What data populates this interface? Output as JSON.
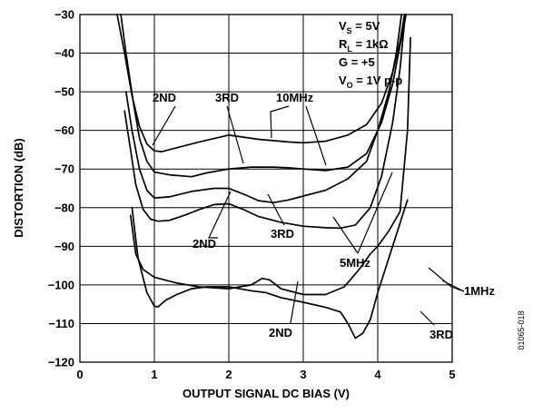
{
  "chart_data": {
    "type": "line",
    "title": "",
    "xlabel": "OUTPUT SIGNAL DC BIAS (V)",
    "ylabel": "DISTORTION (dB)",
    "xlim": [
      0,
      5
    ],
    "ylim": [
      -120,
      -30
    ],
    "x_ticks": [
      "0",
      "1",
      "2",
      "3",
      "4",
      "5"
    ],
    "y_ticks": [
      "-30",
      "-40",
      "-50",
      "-60",
      "-70",
      "-80",
      "-90",
      "-100",
      "-110",
      "-120"
    ],
    "grid": true,
    "conditions": [
      "V",
      "S",
      " = 5V",
      "R",
      "L",
      " = 1kΩ",
      "G = +5",
      "V",
      "O",
      " = 1V p-p"
    ],
    "figure_code": "01065-018",
    "series": [
      {
        "group": "10MHz",
        "harmonic": "2ND",
        "x": [
          0.5,
          0.6,
          0.7,
          0.8,
          0.9,
          1.0,
          1.1,
          1.3,
          1.6,
          2.0,
          2.4,
          2.8,
          3.0,
          3.3,
          3.6,
          3.85,
          4.05,
          4.2,
          4.3,
          4.36
        ],
        "y": [
          -30,
          -40,
          -51,
          -59,
          -63.5,
          -65.3,
          -65.5,
          -64.5,
          -63,
          -61.2,
          -62.3,
          -63,
          -63.2,
          -62.8,
          -61.2,
          -58.5,
          -53,
          -45,
          -37,
          -30
        ]
      },
      {
        "group": "10MHz",
        "harmonic": "3RD",
        "x": [
          0.55,
          0.62,
          0.72,
          0.8,
          0.9,
          1.0,
          1.2,
          1.5,
          1.7,
          2.0,
          2.3,
          2.6,
          2.8,
          3.0,
          3.3,
          3.6,
          3.85,
          4.05,
          4.2,
          4.3,
          4.38
        ],
        "y": [
          -30,
          -40,
          -53,
          -62,
          -68,
          -70.8,
          -71.5,
          -72,
          -71,
          -70,
          -69.5,
          -69.5,
          -69.7,
          -70,
          -70.4,
          -69.5,
          -66,
          -58,
          -48,
          -38,
          -30
        ]
      },
      {
        "group": "5MHz",
        "harmonic": "2ND",
        "x": [
          0.62,
          0.7,
          0.8,
          0.9,
          1.0,
          1.2,
          1.5,
          1.8,
          2.0,
          2.2,
          2.4,
          2.6,
          2.8,
          3.0,
          3.3,
          3.6,
          3.85,
          4.0,
          4.15,
          4.25,
          4.32
        ],
        "y": [
          -50,
          -60,
          -70,
          -75.5,
          -77.5,
          -77.2,
          -75.8,
          -75,
          -75,
          -76.5,
          -78.2,
          -78.7,
          -78,
          -77,
          -75.5,
          -72.5,
          -68,
          -60,
          -50,
          -40,
          -30
        ]
      },
      {
        "group": "5MHz",
        "harmonic": "3RD",
        "x": [
          0.6,
          0.68,
          0.75,
          0.85,
          0.95,
          1.05,
          1.2,
          1.4,
          1.6,
          1.8,
          2.0,
          2.2,
          2.4,
          2.7,
          3.0,
          3.3,
          3.5,
          3.7,
          3.9,
          4.05,
          4.2,
          4.3,
          4.37
        ],
        "y": [
          -55,
          -65,
          -74,
          -80.5,
          -83,
          -83.5,
          -83.3,
          -82,
          -80.5,
          -79.2,
          -79,
          -80.5,
          -82.3,
          -83.8,
          -84.8,
          -85.2,
          -85.3,
          -84.5,
          -80,
          -72,
          -58,
          -44,
          -30
        ]
      },
      {
        "group": "1MHz",
        "harmonic": "2ND",
        "x": [
          0.68,
          0.75,
          0.85,
          1.0,
          1.3,
          1.6,
          2.0,
          2.3,
          2.45,
          2.55,
          2.7,
          3.0,
          3.3,
          3.55,
          3.75,
          3.9,
          4.0,
          4.15,
          4.3,
          4.4,
          4.44
        ],
        "y": [
          -82,
          -92,
          -96,
          -98,
          -99.5,
          -100.5,
          -101,
          -100,
          -98.3,
          -98.7,
          -101,
          -102.5,
          -102.5,
          -100.5,
          -96,
          -92,
          -90,
          -86,
          -81,
          -60,
          -36
        ]
      },
      {
        "group": "1MHz",
        "harmonic": "3RD",
        "x": [
          0.7,
          0.78,
          0.9,
          1.0,
          1.05,
          1.15,
          1.3,
          1.5,
          1.7,
          2.0,
          2.3,
          2.5,
          2.7,
          3.0,
          3.3,
          3.5,
          3.6,
          3.7,
          3.8,
          3.9,
          4.0,
          4.1,
          4.2,
          4.3,
          4.4
        ],
        "y": [
          -80,
          -93,
          -102,
          -105.5,
          -105.7,
          -104,
          -102.5,
          -101,
          -100.5,
          -100.5,
          -101.5,
          -102,
          -103.3,
          -104.5,
          -105.8,
          -107,
          -110,
          -113.8,
          -112.5,
          -109,
          -102,
          -96,
          -90,
          -84,
          -78
        ]
      }
    ],
    "annotations": [
      "2ND",
      "3RD",
      "10MHz",
      "2ND",
      "3RD",
      "5MHz",
      "2ND",
      "1MHz",
      "3RD"
    ]
  }
}
